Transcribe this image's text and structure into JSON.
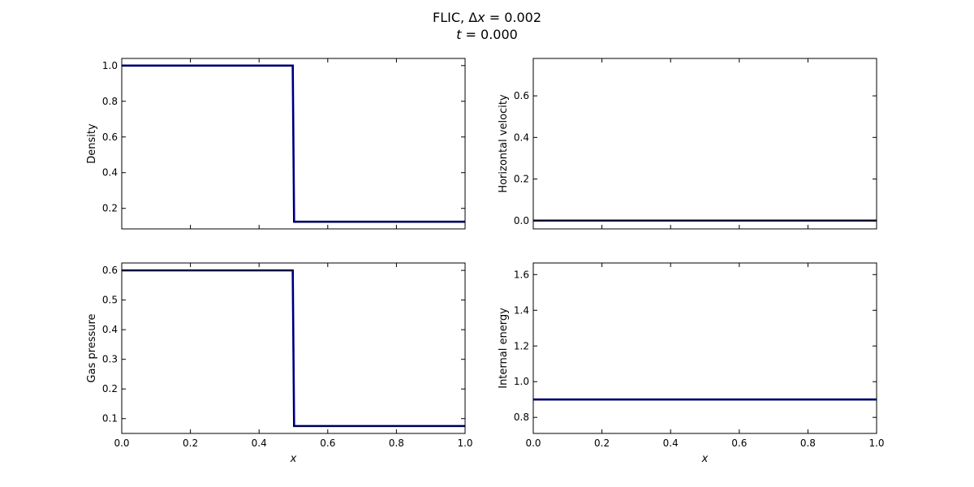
{
  "figure": {
    "title_line1": {
      "prefix": "FLIC, ",
      "delta": "Δ",
      "var": "x",
      "rest": " = 0.002"
    },
    "title_line2": {
      "var": "t",
      "rest": " = 0.000"
    }
  },
  "style": {
    "primary_color": "#00008b",
    "reference_color": "#000000",
    "axes_color": "#000000"
  },
  "chart_data": [
    {
      "id": "density",
      "type": "line",
      "ylabel": "Density",
      "xlabel": "",
      "xlim": [
        0,
        1
      ],
      "ylim": [
        0.085,
        1.04
      ],
      "xticks": [
        0.0,
        0.2,
        0.4,
        0.6,
        0.8,
        1.0
      ],
      "yticks": [
        0.2,
        0.4,
        0.6,
        0.8,
        1.0
      ],
      "ytick_labels": [
        "0.2",
        "0.4",
        "0.6",
        "0.8",
        "1.0"
      ],
      "show_xtick_labels": false,
      "series": [
        {
          "role": "reference",
          "x": [
            0,
            0.5,
            0.5,
            1.0
          ],
          "y": [
            1.0,
            1.0,
            0.125,
            0.125
          ]
        },
        {
          "role": "numerical",
          "x": [
            0,
            0.498,
            0.502,
            1.0
          ],
          "y": [
            1.0,
            1.0,
            0.125,
            0.125
          ]
        }
      ]
    },
    {
      "id": "velocity",
      "type": "line",
      "ylabel": "Horizontal velocity",
      "xlabel": "",
      "xlim": [
        0,
        1
      ],
      "ylim": [
        -0.04,
        0.78
      ],
      "xticks": [
        0.0,
        0.2,
        0.4,
        0.6,
        0.8,
        1.0
      ],
      "yticks": [
        0.0,
        0.2,
        0.4,
        0.6
      ],
      "ytick_labels": [
        "0.0",
        "0.2",
        "0.4",
        "0.6"
      ],
      "show_xtick_labels": false,
      "series": [
        {
          "role": "reference",
          "x": [
            0,
            1.0
          ],
          "y": [
            0.0,
            0.0
          ]
        },
        {
          "role": "numerical",
          "x": [
            0,
            1.0
          ],
          "y": [
            0.0,
            0.0
          ]
        }
      ]
    },
    {
      "id": "pressure",
      "type": "line",
      "ylabel": "Gas pressure",
      "xlabel": "x",
      "xlim": [
        0,
        1
      ],
      "ylim": [
        0.05,
        0.625
      ],
      "xticks": [
        0.0,
        0.2,
        0.4,
        0.6,
        0.8,
        1.0
      ],
      "xtick_labels": [
        "0.0",
        "0.2",
        "0.4",
        "0.6",
        "0.8",
        "1.0"
      ],
      "yticks": [
        0.1,
        0.2,
        0.3,
        0.4,
        0.5,
        0.6
      ],
      "ytick_labels": [
        "0.1",
        "0.2",
        "0.3",
        "0.4",
        "0.5",
        "0.6"
      ],
      "show_xtick_labels": true,
      "series": [
        {
          "role": "reference",
          "x": [
            0,
            0.5,
            0.5,
            1.0
          ],
          "y": [
            0.6,
            0.6,
            0.075,
            0.075
          ]
        },
        {
          "role": "numerical",
          "x": [
            0,
            0.498,
            0.502,
            1.0
          ],
          "y": [
            0.6,
            0.6,
            0.075,
            0.075
          ]
        }
      ]
    },
    {
      "id": "energy",
      "type": "line",
      "ylabel": "Internal energy",
      "xlabel": "x",
      "xlim": [
        0,
        1
      ],
      "ylim": [
        0.71,
        1.665
      ],
      "xticks": [
        0.0,
        0.2,
        0.4,
        0.6,
        0.8,
        1.0
      ],
      "xtick_labels": [
        "0.0",
        "0.2",
        "0.4",
        "0.6",
        "0.8",
        "1.0"
      ],
      "yticks": [
        0.8,
        1.0,
        1.2,
        1.4,
        1.6
      ],
      "ytick_labels": [
        "0.8",
        "1.0",
        "1.2",
        "1.4",
        "1.6"
      ],
      "show_xtick_labels": true,
      "series": [
        {
          "role": "reference",
          "x": [
            0,
            1.0
          ],
          "y": [
            0.9,
            0.9
          ]
        },
        {
          "role": "numerical",
          "x": [
            0,
            1.0
          ],
          "y": [
            0.9,
            0.9
          ]
        }
      ]
    }
  ]
}
